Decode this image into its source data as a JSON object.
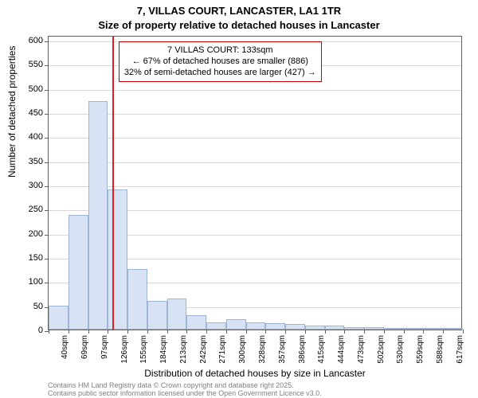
{
  "title": {
    "line1": "7, VILLAS COURT, LANCASTER, LA1 1TR",
    "line2": "Size of property relative to detached houses in Lancaster"
  },
  "histogram": {
    "type": "histogram",
    "background_color": "#ffffff",
    "bar_fill": "#d7e3f4",
    "bar_border": "#9fb4d4",
    "grid_color": "#d8d8d8",
    "axis_color": "#606060",
    "ylabel": "Number of detached properties",
    "xlabel": "Distribution of detached houses by size in Lancaster",
    "ylim": [
      0,
      610
    ],
    "ytick_step": 50,
    "ytick_labels": [
      "0",
      "50",
      "100",
      "150",
      "200",
      "250",
      "300",
      "350",
      "400",
      "450",
      "500",
      "550",
      "600"
    ],
    "xtick_labels": [
      "40sqm",
      "69sqm",
      "97sqm",
      "126sqm",
      "155sqm",
      "184sqm",
      "213sqm",
      "242sqm",
      "271sqm",
      "300sqm",
      "328sqm",
      "357sqm",
      "386sqm",
      "415sqm",
      "444sqm",
      "473sqm",
      "502sqm",
      "530sqm",
      "559sqm",
      "588sqm",
      "617sqm"
    ],
    "bars": [
      50,
      238,
      473,
      290,
      125,
      60,
      65,
      30,
      15,
      22,
      15,
      14,
      12,
      8,
      8,
      5,
      5,
      3,
      2,
      2,
      2
    ],
    "reference": {
      "value_sqm": 133,
      "color": "#e02020"
    },
    "annotation": {
      "line1": "7 VILLAS COURT: 133sqm",
      "line2": "← 67% of detached houses are smaller (886)",
      "line3": "32% of semi-detached houses are larger (427) →",
      "border_color": "#cc0000"
    },
    "label_fontsize": 12,
    "tick_fontsize": 11
  },
  "attribution": {
    "line1": "Contains HM Land Registry data © Crown copyright and database right 2025.",
    "line2": "Contains public sector information licensed under the Open Government Licence v3.0.",
    "color": "#808080"
  }
}
